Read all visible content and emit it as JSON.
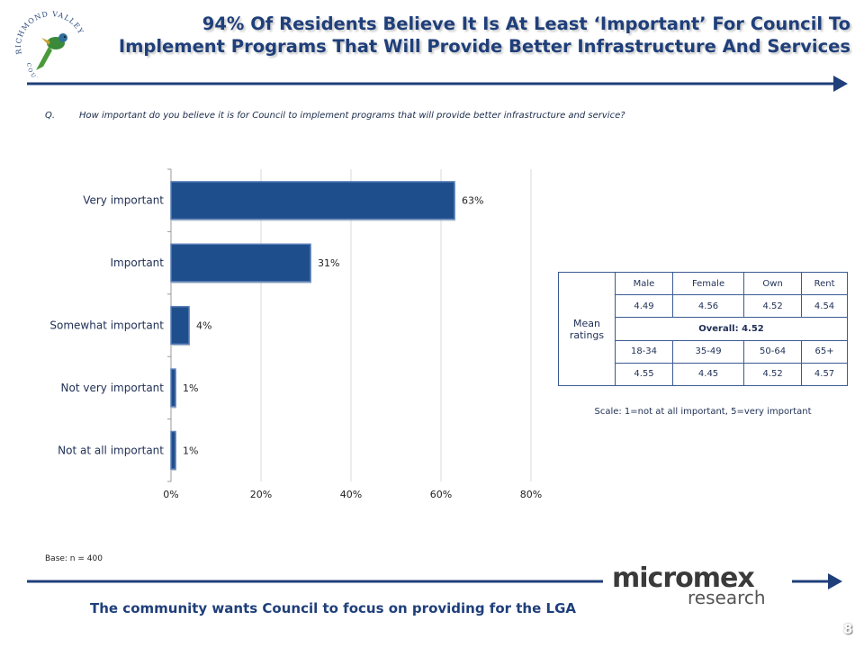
{
  "header": {
    "title_line1": "94% Of Residents Believe It Is At Least ‘Important’ For Council To",
    "title_line2": "Implement Programs That Will Provide Better Infrastructure And Services",
    "logo_text": "RICHMOND VALLEY",
    "logo_text2": "C O U N C I L"
  },
  "question": {
    "number": "Q.",
    "text": "How important do you believe it is for Council to implement programs that will provide better infrastructure and service?"
  },
  "chart_data": {
    "type": "bar",
    "orientation": "horizontal",
    "categories": [
      "Very important",
      "Important",
      "Somewhat important",
      "Not very important",
      "Not at all important"
    ],
    "values": [
      63,
      31,
      4,
      1,
      1
    ],
    "data_labels": [
      "63%",
      "31%",
      "4%",
      "1%",
      "1%"
    ],
    "xlim": [
      0,
      80
    ],
    "xticks": [
      "0%",
      "20%",
      "40%",
      "60%",
      "80%"
    ],
    "xtick_values": [
      0,
      20,
      40,
      60,
      80
    ],
    "grid": true,
    "bar_color": "#1f4e8c",
    "bar_edge_color": "#5a7fb8"
  },
  "mean_table": {
    "row_label": "Mean ratings",
    "header1": [
      "Male",
      "Female",
      "Own",
      "Rent"
    ],
    "values1": [
      "4.49",
      "4.56",
      "4.52",
      "4.54"
    ],
    "overall": "Overall:  4.52",
    "header2": [
      "18-34",
      "35-49",
      "50-64",
      "65+"
    ],
    "values2": [
      "4.55",
      "4.45",
      "4.52",
      "4.57"
    ]
  },
  "scale_note": "Scale: 1=not at all important, 5=very important",
  "base": "Base: n = 400",
  "footer": {
    "text": "The community wants Council to focus on providing for the LGA",
    "brand_main": "micromex",
    "brand_sub": "research",
    "page_number": "8"
  },
  "colors": {
    "title": "#1f3f7a",
    "accent_line": "#1f3f7a"
  }
}
